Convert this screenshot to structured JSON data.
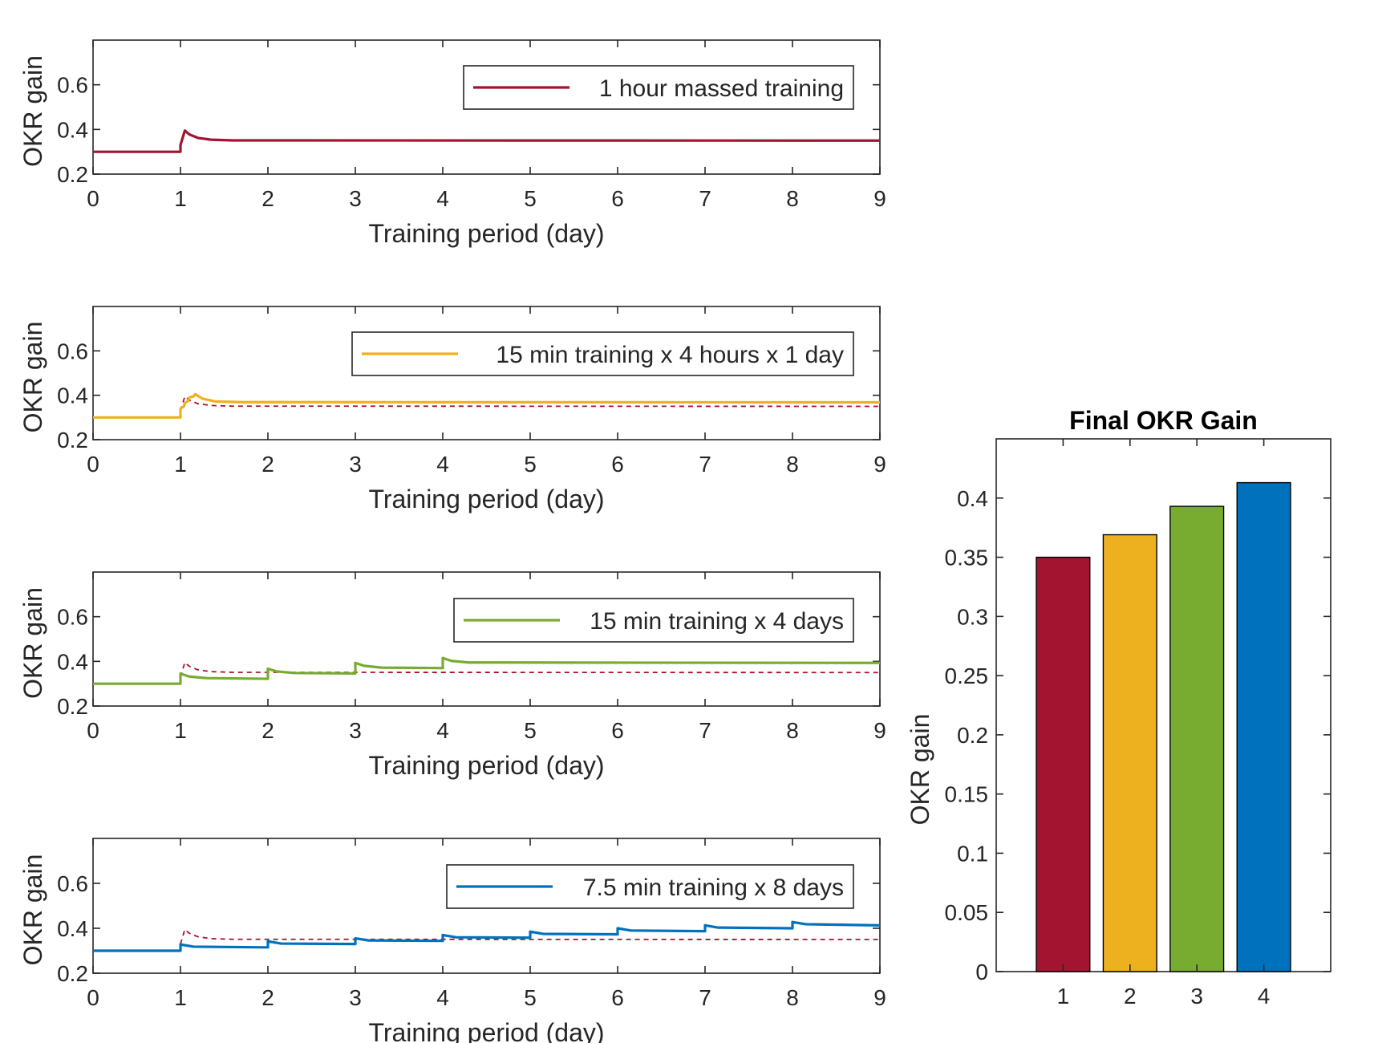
{
  "colors": {
    "red": "#A2142F",
    "orange": "#EDB120",
    "green": "#77AC30",
    "blue": "#0072BD",
    "axis": "#262626",
    "legend_border": "#262626"
  },
  "chart_data": [
    {
      "type": "line",
      "ylabel": "OKR gain",
      "xlabel": "Training period (day)",
      "xlim": [
        0,
        9
      ],
      "ylim": [
        0.2,
        0.8
      ],
      "xticks": [
        "0",
        "1",
        "2",
        "3",
        "4",
        "5",
        "6",
        "7",
        "8",
        "9"
      ],
      "yticks": [
        "0.2",
        "0.4",
        "0.6"
      ],
      "legend": "1 hour massed training",
      "legend_position": "top-right",
      "series": [
        {
          "name": "1 hour massed training",
          "color": "#A2142F",
          "style": "solid",
          "points": [
            [
              0,
              0.3
            ],
            [
              1,
              0.3
            ],
            [
              1.0,
              0.33
            ],
            [
              1.05,
              0.395
            ],
            [
              1.1,
              0.378
            ],
            [
              1.2,
              0.362
            ],
            [
              1.35,
              0.354
            ],
            [
              1.6,
              0.351
            ],
            [
              9,
              0.35
            ]
          ]
        }
      ]
    },
    {
      "type": "line",
      "ylabel": "OKR gain",
      "xlabel": "Training period (day)",
      "xlim": [
        0,
        9
      ],
      "ylim": [
        0.2,
        0.8
      ],
      "xticks": [
        "0",
        "1",
        "2",
        "3",
        "4",
        "5",
        "6",
        "7",
        "8",
        "9"
      ],
      "yticks": [
        "0.2",
        "0.4",
        "0.6"
      ],
      "legend": "15 min training x 4 hours x 1 day",
      "legend_position": "top-right",
      "series": [
        {
          "color": "#A2142F",
          "style": "dashed",
          "points": [
            [
              1.0,
              0.33
            ],
            [
              1.05,
              0.395
            ],
            [
              1.1,
              0.378
            ],
            [
              1.2,
              0.362
            ],
            [
              1.35,
              0.354
            ],
            [
              1.6,
              0.351
            ],
            [
              9,
              0.35
            ]
          ]
        },
        {
          "name": "15 min training x 4 hours x 1 day",
          "color": "#EDB120",
          "style": "solid",
          "points": [
            [
              0,
              0.3
            ],
            [
              1,
              0.3
            ],
            [
              1.0,
              0.34
            ],
            [
              1.04,
              0.35
            ],
            [
              1.05,
              0.365
            ],
            [
              1.09,
              0.375
            ],
            [
              1.1,
              0.39
            ],
            [
              1.15,
              0.395
            ],
            [
              1.17,
              0.405
            ],
            [
              1.25,
              0.385
            ],
            [
              1.4,
              0.372
            ],
            [
              1.7,
              0.369
            ],
            [
              9,
              0.368
            ]
          ]
        }
      ]
    },
    {
      "type": "line",
      "ylabel": "OKR gain",
      "xlabel": "Training period (day)",
      "xlim": [
        0,
        9
      ],
      "ylim": [
        0.2,
        0.8
      ],
      "xticks": [
        "0",
        "1",
        "2",
        "3",
        "4",
        "5",
        "6",
        "7",
        "8",
        "9"
      ],
      "yticks": [
        "0.2",
        "0.4",
        "0.6"
      ],
      "legend": "15 min training x 4 days",
      "legend_position": "top-right",
      "series": [
        {
          "color": "#A2142F",
          "style": "dashed",
          "points": [
            [
              1.0,
              0.33
            ],
            [
              1.05,
              0.395
            ],
            [
              1.1,
              0.378
            ],
            [
              1.2,
              0.362
            ],
            [
              1.35,
              0.354
            ],
            [
              1.6,
              0.351
            ],
            [
              9,
              0.35
            ]
          ]
        },
        {
          "name": "15 min training x 4 days",
          "color": "#77AC30",
          "style": "solid",
          "points": [
            [
              0,
              0.3
            ],
            [
              1,
              0.3
            ],
            [
              1.0,
              0.345
            ],
            [
              1.1,
              0.332
            ],
            [
              1.3,
              0.325
            ],
            [
              2,
              0.322
            ],
            [
              2.0,
              0.367
            ],
            [
              2.1,
              0.355
            ],
            [
              2.3,
              0.348
            ],
            [
              3,
              0.346
            ],
            [
              3.0,
              0.393
            ],
            [
              3.1,
              0.38
            ],
            [
              3.3,
              0.372
            ],
            [
              4,
              0.37
            ],
            [
              4.0,
              0.415
            ],
            [
              4.1,
              0.402
            ],
            [
              4.3,
              0.395
            ],
            [
              9,
              0.393
            ]
          ]
        }
      ]
    },
    {
      "type": "line",
      "ylabel": "OKR gain",
      "xlabel": "Training period (day)",
      "xlim": [
        0,
        9
      ],
      "ylim": [
        0.2,
        0.8
      ],
      "xticks": [
        "0",
        "1",
        "2",
        "3",
        "4",
        "5",
        "6",
        "7",
        "8",
        "9"
      ],
      "yticks": [
        "0.2",
        "0.4",
        "0.6"
      ],
      "legend": "7.5 min training x 8 days",
      "legend_position": "top-right",
      "series": [
        {
          "color": "#A2142F",
          "style": "dashed",
          "points": [
            [
              1.0,
              0.33
            ],
            [
              1.05,
              0.395
            ],
            [
              1.1,
              0.378
            ],
            [
              1.2,
              0.362
            ],
            [
              1.35,
              0.354
            ],
            [
              1.6,
              0.351
            ],
            [
              9,
              0.35
            ]
          ]
        },
        {
          "name": "7.5 min training x 8 days",
          "color": "#0072BD",
          "style": "solid",
          "points": [
            [
              0,
              0.3
            ],
            [
              1,
              0.3
            ],
            [
              1.0,
              0.328
            ],
            [
              1.15,
              0.318
            ],
            [
              2,
              0.315
            ],
            [
              2.0,
              0.342
            ],
            [
              2.15,
              0.332
            ],
            [
              3,
              0.33
            ],
            [
              3.0,
              0.355
            ],
            [
              3.15,
              0.346
            ],
            [
              4,
              0.344
            ],
            [
              4.0,
              0.37
            ],
            [
              4.15,
              0.36
            ],
            [
              5,
              0.358
            ],
            [
              5.0,
              0.385
            ],
            [
              5.15,
              0.375
            ],
            [
              6,
              0.373
            ],
            [
              6.0,
              0.4
            ],
            [
              6.15,
              0.39
            ],
            [
              7,
              0.387
            ],
            [
              7.0,
              0.413
            ],
            [
              7.15,
              0.403
            ],
            [
              8,
              0.4
            ],
            [
              8.0,
              0.428
            ],
            [
              8.15,
              0.418
            ],
            [
              9,
              0.413
            ]
          ]
        }
      ]
    },
    {
      "type": "bar",
      "title": "Final OKR Gain",
      "ylabel": "OKR gain",
      "categories": [
        "1",
        "2",
        "3",
        "4"
      ],
      "values": [
        0.35,
        0.369,
        0.393,
        0.413
      ],
      "colors": [
        "#A2142F",
        "#EDB120",
        "#77AC30",
        "#0072BD"
      ],
      "ylim": [
        0,
        0.45
      ],
      "yticks": [
        "0",
        "0.05",
        "0.1",
        "0.15",
        "0.2",
        "0.25",
        "0.3",
        "0.35",
        "0.4"
      ]
    }
  ]
}
